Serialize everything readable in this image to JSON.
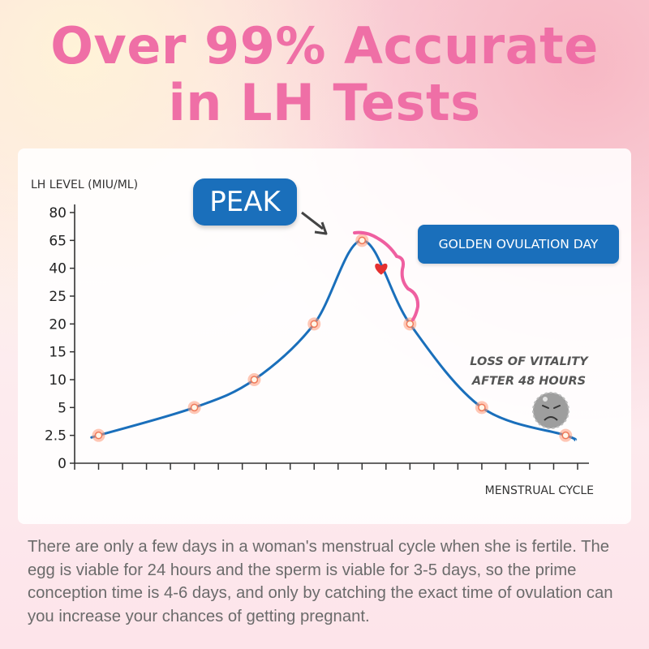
{
  "headline": {
    "line1": "Over 99% Accurate",
    "line2": "in LH Tests"
  },
  "colors": {
    "headline": "#ef6fa6",
    "curve": "#1a6fbb",
    "label_box": "#1a6fbb",
    "brace": "#ef5fa0",
    "heart": "#e53030"
  },
  "callouts": {
    "peak": "PEAK",
    "golden": "GOLDEN OVULATION DAY",
    "vitality_line1": "LOSS OF VITALITY",
    "vitality_line2": "AFTER 48 HOURS"
  },
  "chart_data": {
    "type": "line",
    "ylabel": "LH LEVEL (MIU/ML)",
    "xlabel": "MENSTRUAL CYCLE",
    "y_ticks": [
      "0",
      "2.5",
      "5",
      "10",
      "15",
      "20",
      "25",
      "40",
      "65",
      "80"
    ],
    "y_scale": "categorical-tick (non-linear)",
    "x_tick_count": 22,
    "series": [
      {
        "points": [
          {
            "x": 1,
            "y": 2.5
          },
          {
            "x": 5,
            "y": 5
          },
          {
            "x": 7.5,
            "y": 10
          },
          {
            "x": 10,
            "y": 20
          },
          {
            "x": 12,
            "y": 65
          },
          {
            "x": 14,
            "y": 20
          },
          {
            "x": 17,
            "y": 5
          },
          {
            "x": 20.5,
            "y": 2.5
          }
        ]
      }
    ],
    "heart_marker": {
      "x": 12.8,
      "y": 40
    },
    "grid": false
  },
  "body_text": "There are only a few days in a woman's menstrual cycle when she is fertile. The egg is viable for 24 hours and the sperm is viable for 3-5 days, so the prime conception time is 4-6 days, and only by catching the exact time of ovulation can you increase your chances of getting pregnant."
}
